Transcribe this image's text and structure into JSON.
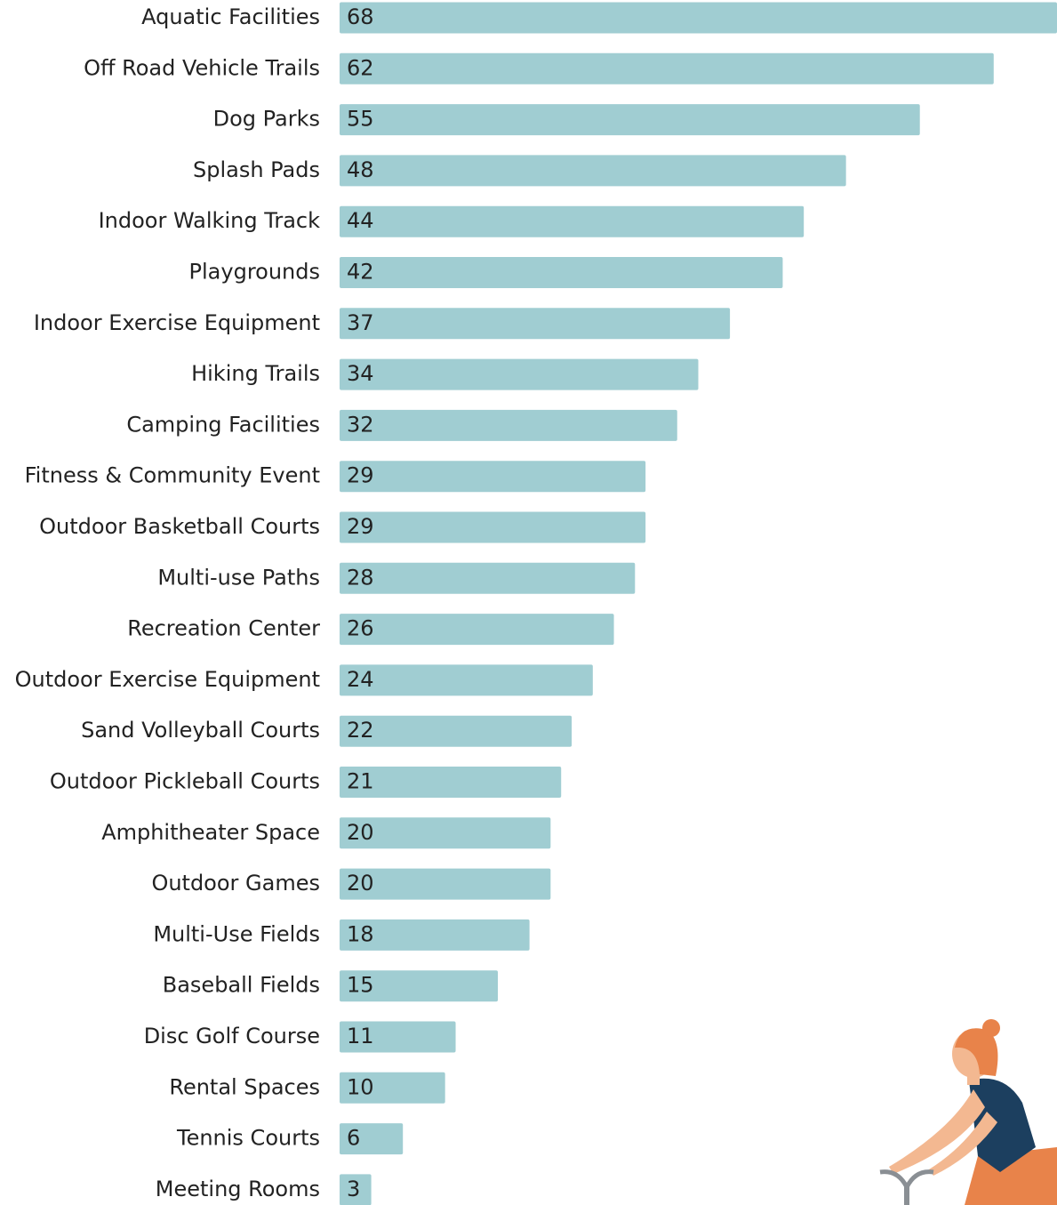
{
  "chart_data": {
    "type": "bar",
    "orientation": "horizontal",
    "color": "#a0cdd2",
    "categories": [
      "Aquatic Facilities",
      "Off Road Vehicle Trails",
      "Dog Parks",
      "Splash Pads",
      "Indoor Walking Track",
      "Playgrounds",
      "Indoor Exercise Equipment",
      "Hiking Trails",
      "Camping Facilities",
      "Fitness & Community Event",
      "Outdoor Basketball Courts",
      "Multi-use Paths",
      "Recreation Center",
      "Outdoor Exercise Equipment",
      "Sand Volleyball Courts",
      "Outdoor Pickleball Courts",
      "Amphitheater Space",
      "Outdoor Games",
      "Multi-Use Fields",
      "Baseball Fields",
      "Disc Golf Course",
      "Rental Spaces",
      "Tennis Courts",
      "Meeting Rooms"
    ],
    "values": [
      68,
      62,
      55,
      48,
      44,
      42,
      37,
      34,
      32,
      29,
      29,
      28,
      26,
      24,
      22,
      21,
      20,
      20,
      18,
      15,
      11,
      10,
      6,
      3
    ]
  }
}
